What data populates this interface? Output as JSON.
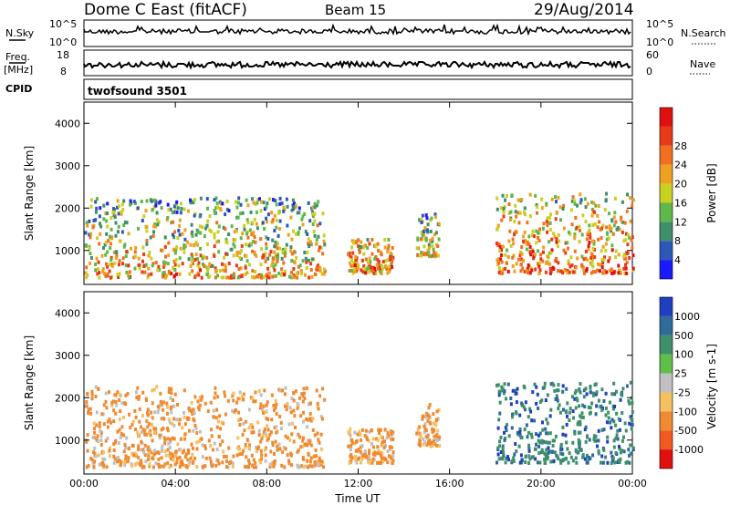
{
  "header": {
    "title": "Dome C East (fitACF)",
    "beam": "Beam 15",
    "date": "29/Aug/2014"
  },
  "status_panel": {
    "nsky_label": "N.Sky",
    "nsky_ticks": [
      "10^5",
      "10^0"
    ],
    "nsearch_label": "N.Search",
    "nsearch_ticks": [
      "10^5",
      "10^0"
    ],
    "freq_label": "Freq.",
    "freq_unit": "[MHz]",
    "freq_ticks": [
      "18",
      "8"
    ],
    "nave_label": "Nave",
    "nave_ticks": [
      "60",
      "0"
    ],
    "cpid_label": "CPID",
    "cpid_value": "twofsound 3501"
  },
  "chart_data": [
    {
      "type": "heatmap",
      "name": "power-panel",
      "xlabel": "",
      "ylabel": "Slant Range [km]",
      "ylim": [
        200,
        4500
      ],
      "yticks": [
        "1000",
        "2000",
        "3000",
        "4000"
      ],
      "colorbar_label": "Power [dB]",
      "colorbar_ticks": [
        "4",
        "8",
        "12",
        "16",
        "20",
        "24",
        "28"
      ],
      "colors": [
        "#1a1aff",
        "#2e58b8",
        "#3e8f6a",
        "#5fb84a",
        "#c8d020",
        "#f0a020",
        "#f07020",
        "#e83a18",
        "#e01010"
      ]
    },
    {
      "type": "heatmap",
      "name": "velocity-panel",
      "xlabel": "Time UT",
      "ylabel": "Slant Range [km]",
      "ylim": [
        200,
        4500
      ],
      "yticks": [
        "1000",
        "2000",
        "3000",
        "4000"
      ],
      "xticks": [
        "00:00",
        "04:00",
        "08:00",
        "12:00",
        "16:00",
        "20:00",
        "00:00"
      ],
      "colorbar_label": "Velocity [m s-1]",
      "colorbar_ticks": [
        "1000",
        "500",
        "100",
        "25",
        "-25",
        "-100",
        "-500",
        "-1000"
      ],
      "colors": [
        "#1f3fbf",
        "#2e6a9a",
        "#3e8f6a",
        "#5fbf4a",
        "#c0c0c0",
        "#f5c060",
        "#f08a30",
        "#f05a20",
        "#e01010"
      ]
    }
  ]
}
